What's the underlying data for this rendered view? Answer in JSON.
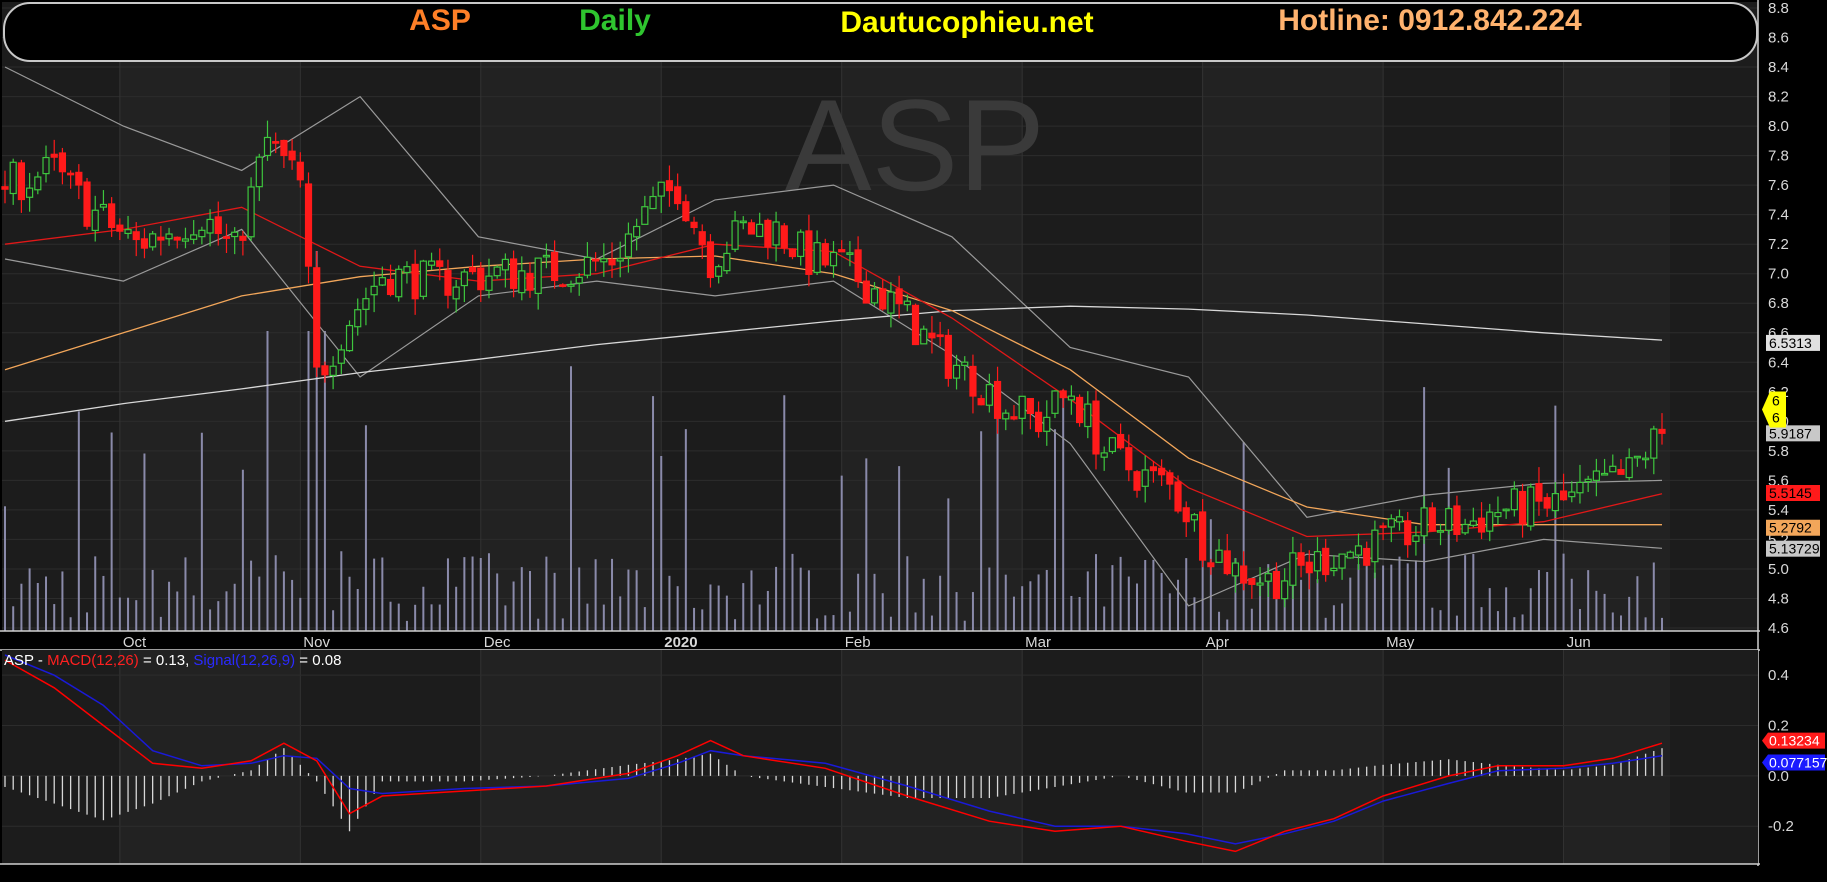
{
  "header": {
    "symbol": "ASP",
    "period": "Daily",
    "site": "Dautucophieu.net",
    "hotline": "Hotline: 0912.842.224"
  },
  "watermark": "ASP",
  "colors": {
    "background": "#000000",
    "panel": "#1c1c1c",
    "up_candle": "#3ec63e",
    "down_candle": "#ff1a1a",
    "ma_red": "#e01818",
    "ma_orange": "#f2a65a",
    "ma_white": "#d8d8d8",
    "bollinger": "#9a9a9a",
    "volume": "#8a8aaa",
    "macd": "#ff0000",
    "signal": "#1a1ad8",
    "symbol_text": "#ff7f27",
    "period_text": "#2fc52f",
    "site_text": "#ffff00",
    "hotline_text": "#ffb26e"
  },
  "chart_data": [
    {
      "type": "candlestick",
      "symbol": "ASP",
      "period": "Daily",
      "ylim": [
        4.6,
        8.8
      ],
      "y_ticks": [
        "8.8",
        "8.6",
        "8.4",
        "8.2",
        "8.0",
        "7.8",
        "7.6",
        "7.4",
        "7.2",
        "7.0",
        "6.8",
        "6.6",
        "6.4",
        "6.2",
        "6.0",
        "5.8",
        "5.6",
        "5.4",
        "5.2",
        "5.0",
        "4.8",
        "4.6"
      ],
      "x_labels": [
        "Oct",
        "Nov",
        "Dec",
        "2020",
        "Feb",
        "Mar",
        "Apr",
        "May",
        "Jun"
      ],
      "x_label_days": [
        14,
        36,
        58,
        80,
        102,
        124,
        146,
        168,
        190
      ],
      "n_days": 203,
      "anchors": [
        [
          0,
          7.6
        ],
        [
          6,
          7.7
        ],
        [
          10,
          7.45
        ],
        [
          16,
          7.2
        ],
        [
          20,
          7.3
        ],
        [
          24,
          7.4
        ],
        [
          28,
          7.15
        ],
        [
          32,
          7.9
        ],
        [
          36,
          7.6
        ],
        [
          38,
          6.3
        ],
        [
          40,
          6.5
        ],
        [
          42,
          6.7
        ],
        [
          46,
          7.0
        ],
        [
          52,
          6.95
        ],
        [
          60,
          7.0
        ],
        [
          68,
          7.02
        ],
        [
          74,
          7.1
        ],
        [
          78,
          7.4
        ],
        [
          82,
          7.6
        ],
        [
          86,
          7.1
        ],
        [
          90,
          7.3
        ],
        [
          94,
          7.3
        ],
        [
          98,
          7.1
        ],
        [
          102,
          7.05
        ],
        [
          106,
          6.9
        ],
        [
          110,
          6.7
        ],
        [
          114,
          6.45
        ],
        [
          118,
          6.3
        ],
        [
          122,
          6.1
        ],
        [
          126,
          6.0
        ],
        [
          130,
          6.2
        ],
        [
          134,
          5.8
        ],
        [
          138,
          5.65
        ],
        [
          142,
          5.55
        ],
        [
          144,
          5.4
        ],
        [
          146,
          5.2
        ],
        [
          150,
          5.0
        ],
        [
          154,
          4.92
        ],
        [
          158,
          5.0
        ],
        [
          162,
          5.1
        ],
        [
          166,
          5.15
        ],
        [
          170,
          5.22
        ],
        [
          174,
          5.3
        ],
        [
          178,
          5.3
        ],
        [
          182,
          5.4
        ],
        [
          186,
          5.42
        ],
        [
          190,
          5.45
        ],
        [
          194,
          5.55
        ],
        [
          198,
          5.65
        ],
        [
          200,
          5.8
        ],
        [
          202,
          5.92
        ]
      ],
      "last_close": 5.9187,
      "last_marker": "6",
      "series": [
        {
          "name": "MA long",
          "last_value": "6.5313",
          "values": [
            6.0,
            6.12,
            6.22,
            6.33,
            6.42,
            6.52,
            6.6,
            6.68,
            6.75,
            6.78,
            6.76,
            6.72,
            6.66,
            6.6,
            6.55
          ]
        },
        {
          "name": "MA mid",
          "last_value": "5.2792",
          "values": [
            6.35,
            6.6,
            6.85,
            6.98,
            7.05,
            7.1,
            7.12,
            7.0,
            6.75,
            6.35,
            5.75,
            5.42,
            5.3,
            5.3,
            5.3
          ]
        },
        {
          "name": "MA short",
          "last_value": "5.5145",
          "values": [
            7.2,
            7.3,
            7.45,
            7.05,
            6.95,
            7.0,
            7.2,
            7.15,
            6.7,
            6.15,
            5.55,
            5.22,
            5.25,
            5.32,
            5.51
          ]
        },
        {
          "name": "Bollinger lower",
          "last_value": "5.13729",
          "values": [
            7.1,
            6.95,
            7.3,
            6.3,
            6.85,
            6.95,
            6.85,
            6.95,
            6.45,
            5.85,
            4.75,
            5.1,
            5.05,
            5.2,
            5.14
          ]
        }
      ],
      "bollinger_upper": [
        8.4,
        8.0,
        7.7,
        8.2,
        7.25,
        7.1,
        7.5,
        7.6,
        7.25,
        6.5,
        6.3,
        5.35,
        5.5,
        5.58,
        5.6
      ]
    },
    {
      "type": "line",
      "title": "ASP - MACD(12,26) = 0.13, Signal(12,26,9) = 0.08",
      "legend": {
        "prefix": "ASP - ",
        "macd_label": "MACD(12,26)",
        "macd_value": " = 0.13, ",
        "signal_label": "Signal(12,26,9)",
        "signal_value": " = 0.08"
      },
      "ylim": [
        -0.35,
        0.5
      ],
      "y_ticks": [
        "0.4",
        "0.2",
        "0.0",
        "-0.2"
      ],
      "series": [
        {
          "name": "MACD(12,26)",
          "last_value": "0.13234",
          "points": [
            [
              0,
              0.46
            ],
            [
              6,
              0.35
            ],
            [
              12,
              0.2
            ],
            [
              18,
              0.05
            ],
            [
              24,
              0.03
            ],
            [
              30,
              0.06
            ],
            [
              34,
              0.13
            ],
            [
              38,
              0.06
            ],
            [
              42,
              -0.15
            ],
            [
              46,
              -0.08
            ],
            [
              56,
              -0.06
            ],
            [
              66,
              -0.04
            ],
            [
              76,
              0.01
            ],
            [
              82,
              0.08
            ],
            [
              86,
              0.14
            ],
            [
              90,
              0.08
            ],
            [
              100,
              0.03
            ],
            [
              110,
              -0.08
            ],
            [
              120,
              -0.18
            ],
            [
              128,
              -0.22
            ],
            [
              136,
              -0.2
            ],
            [
              144,
              -0.26
            ],
            [
              150,
              -0.3
            ],
            [
              156,
              -0.22
            ],
            [
              162,
              -0.17
            ],
            [
              168,
              -0.08
            ],
            [
              176,
              0.0
            ],
            [
              182,
              0.04
            ],
            [
              190,
              0.04
            ],
            [
              196,
              0.07
            ],
            [
              202,
              0.13
            ]
          ]
        },
        {
          "name": "Signal(12,26,9)",
          "last_value": "0.077157",
          "points": [
            [
              0,
              0.48
            ],
            [
              6,
              0.4
            ],
            [
              12,
              0.28
            ],
            [
              18,
              0.1
            ],
            [
              24,
              0.04
            ],
            [
              30,
              0.05
            ],
            [
              34,
              0.08
            ],
            [
              38,
              0.07
            ],
            [
              42,
              -0.05
            ],
            [
              46,
              -0.07
            ],
            [
              56,
              -0.05
            ],
            [
              66,
              -0.04
            ],
            [
              76,
              -0.01
            ],
            [
              82,
              0.05
            ],
            [
              86,
              0.1
            ],
            [
              90,
              0.08
            ],
            [
              100,
              0.05
            ],
            [
              110,
              -0.04
            ],
            [
              120,
              -0.14
            ],
            [
              128,
              -0.2
            ],
            [
              136,
              -0.2
            ],
            [
              144,
              -0.23
            ],
            [
              150,
              -0.27
            ],
            [
              156,
              -0.23
            ],
            [
              162,
              -0.18
            ],
            [
              168,
              -0.1
            ],
            [
              176,
              -0.03
            ],
            [
              182,
              0.02
            ],
            [
              190,
              0.03
            ],
            [
              196,
              0.05
            ],
            [
              202,
              0.08
            ]
          ]
        }
      ]
    }
  ]
}
